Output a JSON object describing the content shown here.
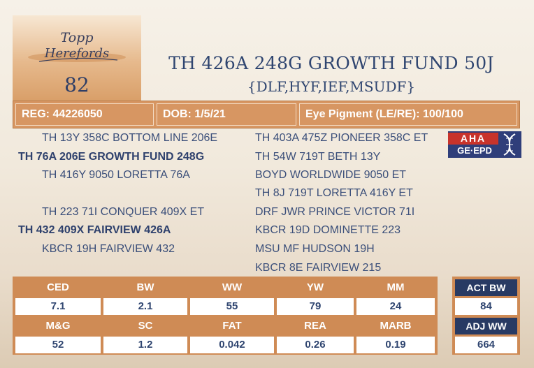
{
  "logo": {
    "text": "Topp Herefords"
  },
  "lot_number": "82",
  "title": "TH 426A 248G GROWTH FUND 50J",
  "subtitle": "{DLF,HYF,IEF,MSUDF}",
  "info": {
    "reg": "REG: 44226050",
    "dob": "DOB: 1/5/21",
    "eye": "Eye Pigment (LE/RE): 100/100"
  },
  "pedigree": {
    "left": [
      "TH 13Y 358C BOTTOM LINE 206E",
      "TH 76A 206E GROWTH FUND 248G",
      "TH 416Y 9050 LORETTA 76A",
      "TH 223 71I CONQUER 409X ET",
      "TH 432 409X FAIRVIEW 426A",
      "KBCR 19H FAIRVIEW 432"
    ],
    "right": [
      "TH 403A 475Z PIONEER 358C ET",
      "TH 54W 719T BETH 13Y",
      "BOYD WORLDWIDE 9050 ET",
      "TH 8J 719T LORETTA 416Y ET",
      "DRF JWR PRINCE VICTOR 71I",
      "KBCR 19D DOMINETTE 223",
      "MSU MF HUDSON 19H",
      "KBCR 8E FAIRVIEW 215"
    ]
  },
  "aha_logo": {
    "top": "AHA",
    "bottom": "GE·EPD"
  },
  "epd": {
    "row1_headers": [
      "CED",
      "BW",
      "WW",
      "YW",
      "MM"
    ],
    "row1_values": [
      "7.1",
      "2.1",
      "55",
      "79",
      "24"
    ],
    "row2_headers": [
      "M&G",
      "SC",
      "FAT",
      "REA",
      "MARB"
    ],
    "row2_values": [
      "52",
      "1.2",
      "0.042",
      "0.26",
      "0.19"
    ]
  },
  "actual": {
    "bw_label": "ACT BW",
    "bw_value": "84",
    "ww_label": "ADJ WW",
    "ww_value": "664"
  },
  "colors": {
    "navy": "#2f4570",
    "tan": "#d79662",
    "aha_blue": "#2f3e7a",
    "aha_red": "#c8332b"
  }
}
